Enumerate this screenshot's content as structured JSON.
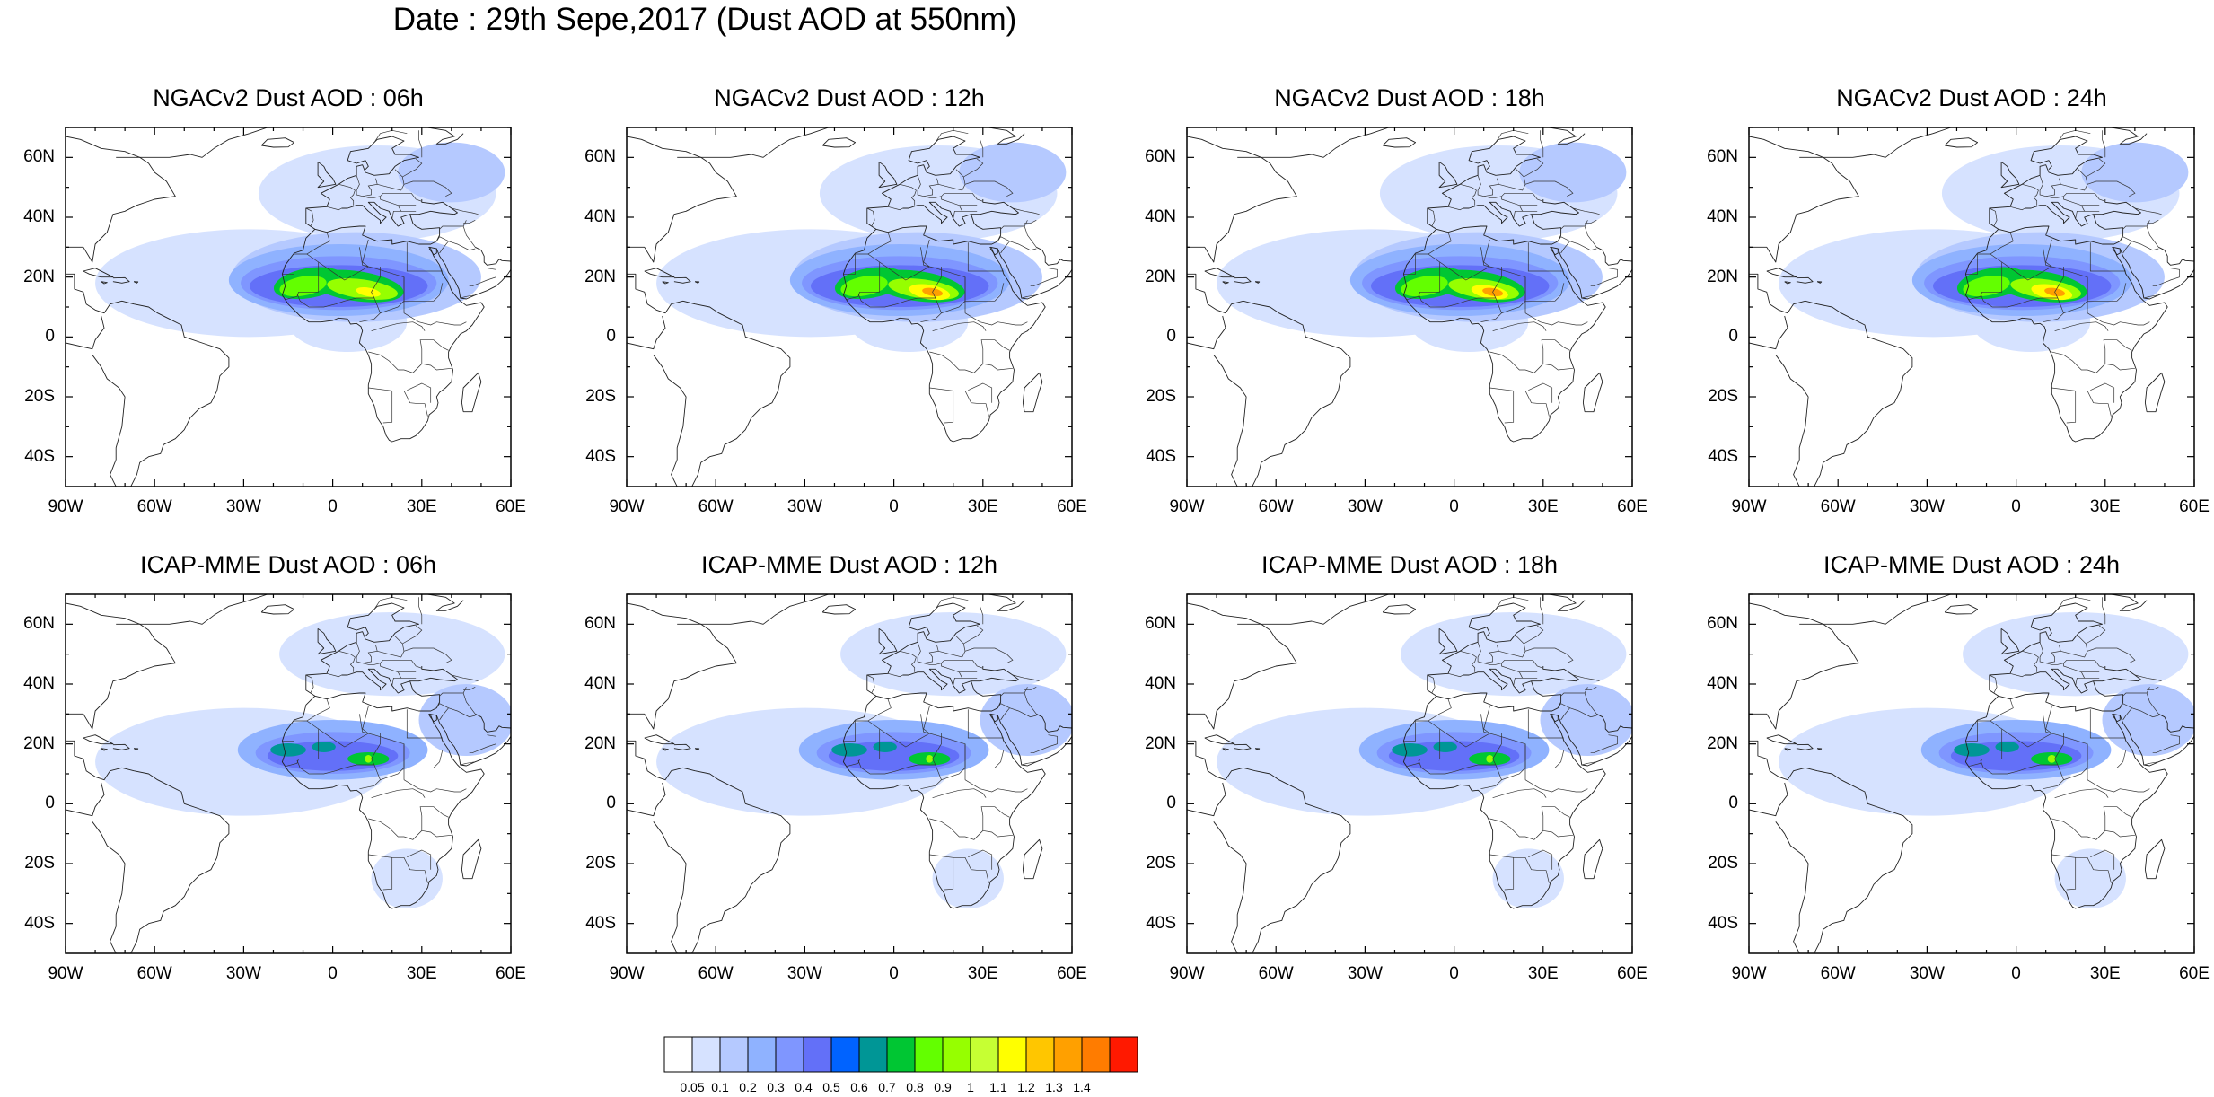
{
  "title": "Date : 29th Sepe,2017 (Dust AOD at 550nm)",
  "panels": [
    {
      "title": "NGACv2 Dust AOD : 06h",
      "row": 0,
      "col": 0,
      "variant": "ngac",
      "hot": 0.6
    },
    {
      "title": "NGACv2 Dust AOD : 12h",
      "row": 0,
      "col": 1,
      "variant": "ngac",
      "hot": 1.0
    },
    {
      "title": "NGACv2 Dust AOD : 18h",
      "row": 0,
      "col": 2,
      "variant": "ngac",
      "hot": 0.9
    },
    {
      "title": "NGACv2 Dust AOD : 24h",
      "row": 0,
      "col": 3,
      "variant": "ngac",
      "hot": 1.0
    },
    {
      "title": "ICAP-MME Dust AOD : 06h",
      "row": 1,
      "col": 0,
      "variant": "icap",
      "hot": 0.3
    },
    {
      "title": "ICAP-MME Dust AOD : 12h",
      "row": 1,
      "col": 1,
      "variant": "icap",
      "hot": 0.3
    },
    {
      "title": "ICAP-MME Dust AOD : 18h",
      "row": 1,
      "col": 2,
      "variant": "icap",
      "hot": 0.3
    },
    {
      "title": "ICAP-MME Dust AOD : 24h",
      "row": 1,
      "col": 3,
      "variant": "icap",
      "hot": 0.35
    }
  ],
  "lat_ticks": [
    "60N",
    "40N",
    "20N",
    "0",
    "20S",
    "40S"
  ],
  "lon_ticks": [
    "90W",
    "60W",
    "30W",
    "0",
    "30E",
    "60E"
  ],
  "colorbar": {
    "levels": [
      "0.05",
      "0.1",
      "0.2",
      "0.3",
      "0.4",
      "0.5",
      "0.6",
      "0.7",
      "0.8",
      "0.9",
      "1",
      "1.1",
      "1.2",
      "1.3",
      "1.4"
    ],
    "colors": [
      "#ffffff",
      "#d6e2ff",
      "#b5c9ff",
      "#8fb2ff",
      "#7f96ff",
      "#6370f8",
      "#0063ff",
      "#009696",
      "#00c633",
      "#63ff00",
      "#96ff00",
      "#c6ff33",
      "#ffff00",
      "#ffc600",
      "#ffa000",
      "#ff7c00",
      "#ff1900"
    ]
  }
}
